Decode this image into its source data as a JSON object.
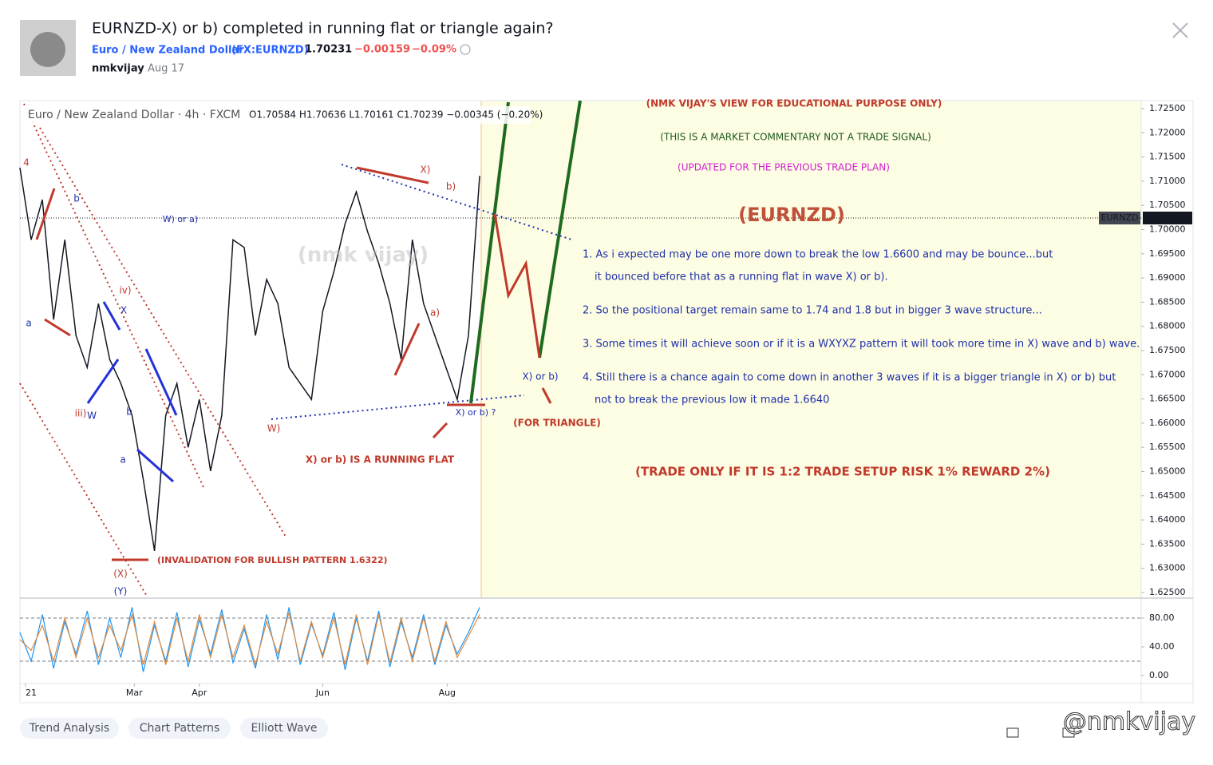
{
  "header": {
    "title": "EURNZD-X) or b) completed in running flat or triangle again?",
    "symbol_name": "Euro / New Zealand Dollar",
    "symbol_code": "(FX:EURNZD)",
    "price": "1.70231",
    "change": "−0.00159",
    "change_pct": "−0.09%",
    "author": "nmkvijay",
    "date": "Aug 17"
  },
  "chart_data": [
    {
      "type": "line",
      "title": "Euro / New Zealand Dollar · 4h · FXCM",
      "ohlc": "O1.70584 H1.70636 L1.70161 C1.70239 −0.00345 (−0.20%)",
      "series": [
        {
          "color": "#131722",
          "values": [
            1.7128,
            1.6979,
            1.7062,
            1.6814,
            1.6979,
            1.6781,
            1.6715,
            1.6847,
            1.6732,
            1.6682,
            1.6616,
            1.6484,
            1.6336,
            1.6616,
            1.6682,
            1.655,
            1.6649,
            1.6501,
            1.6616,
            1.6979,
            1.6963,
            1.6781,
            1.6897,
            1.6847,
            1.6715,
            1.6682,
            1.6649,
            1.6831,
            1.6913,
            1.7012,
            1.7078,
            1.6996,
            1.693,
            1.6847,
            1.6732,
            1.6979,
            1.6847,
            1.6781,
            1.6715,
            1.6649,
            1.6781,
            1.7111
          ]
        }
      ],
      "xlim": [
        0,
        100
      ],
      "ylim": [
        1.62401,
        1.72665
      ],
      "yticks": [
        {
          "value": 1.625,
          "label": "1.62500"
        },
        {
          "value": 1.63,
          "label": "1.63000"
        },
        {
          "value": 1.635,
          "label": "1.63500"
        },
        {
          "value": 1.64,
          "label": "1.64000"
        },
        {
          "value": 1.645,
          "label": "1.64500"
        },
        {
          "value": 1.65,
          "label": "1.65000"
        },
        {
          "value": 1.655,
          "label": "1.65500"
        },
        {
          "value": 1.66,
          "label": "1.66000"
        },
        {
          "value": 1.665,
          "label": "1.66500"
        },
        {
          "value": 1.67,
          "label": "1.67000"
        },
        {
          "value": 1.675,
          "label": "1.67500"
        },
        {
          "value": 1.68,
          "label": "1.68000"
        },
        {
          "value": 1.685,
          "label": "1.68500"
        },
        {
          "value": 1.69,
          "label": "1.69000"
        },
        {
          "value": 1.695,
          "label": "1.69500"
        },
        {
          "value": 1.7,
          "label": "1.70000"
        },
        {
          "value": 1.705,
          "label": "1.70500"
        },
        {
          "value": 1.71,
          "label": "1.71000"
        },
        {
          "value": 1.715,
          "label": "1.71500"
        },
        {
          "value": 1.72,
          "label": "1.72000"
        },
        {
          "value": 1.725,
          "label": "1.72500"
        }
      ],
      "last_price_symbol": "EURNZD",
      "last_price": 1.70239,
      "annotations": [
        "(NMK VIJAY'S VIEW FOR EDUCATIONAL PURPOSE ONLY)",
        "(THIS IS A MARKET COMMENTARY NOT A TRADE SIGNAL)",
        "(UPDATED FOR THE PREVIOUS TRADE PLAN)",
        "(EURNZD)",
        "1. As i expected may be one more down to break the low 1.6600 and may be bounce...but",
        "it bounced before that as a running flat in wave X) or b).",
        "2. So the positional target remain same to 1.74 and 1.8 but in bigger 3 wave structure...",
        "3. Some times it will achieve soon or if it is a WXYXZ pattern it will took more time in X) wave and b) wave.",
        "4. Still there is a chance again to come down in another 3 waves if it is a bigger triangle in X) or b) but",
        "not to break the previous low it made 1.6640",
        "(TRADE ONLY IF IT IS 1:2 TRADE SETUP RISK 1% REWARD 2%)",
        "(FOR TRIANGLE)",
        "X) or b) IS A RUNNING FLAT",
        "(INVALIDATION FOR BULLISH PATTERN 1.6322)",
        "X) or b)",
        "X) or b) ?",
        "W) or a)",
        "X)",
        "b)",
        "a)",
        "W)",
        "(X)",
        "(Y)",
        "iv)",
        "X",
        "iii)",
        "W",
        "b",
        "a",
        "a",
        "b",
        "4",
        "(nmk vijay)"
      ]
    },
    {
      "type": "line",
      "series": [
        {
          "color": "#2196f3",
          "values": [
            60,
            20,
            85,
            10,
            75,
            30,
            90,
            15,
            80,
            25,
            95,
            5,
            70,
            20,
            88,
            12,
            78,
            30,
            92,
            18,
            65,
            10,
            85,
            22,
            95,
            15,
            72,
            28,
            88,
            8,
            80,
            20,
            90,
            12,
            75,
            25,
            85,
            15,
            70,
            30,
            60,
            95
          ]
        },
        {
          "color": "#e08a3c",
          "values": [
            50,
            35,
            70,
            20,
            80,
            25,
            80,
            25,
            70,
            35,
            85,
            15,
            75,
            15,
            80,
            20,
            85,
            25,
            85,
            25,
            70,
            15,
            75,
            30,
            88,
            20,
            75,
            25,
            80,
            15,
            85,
            15,
            85,
            18,
            80,
            20,
            80,
            20,
            75,
            25,
            55,
            85
          ]
        }
      ],
      "xlim": [
        0,
        100
      ],
      "ylim": [
        -6.7,
        106.7
      ],
      "yticks": [
        {
          "value": 0,
          "label": "0.00"
        },
        {
          "value": 40,
          "label": "40.00"
        },
        {
          "value": 80,
          "label": "80.00"
        }
      ],
      "levels": [
        80,
        20
      ],
      "xticks": [
        {
          "value": 0.5,
          "label": "21"
        },
        {
          "value": 10.2,
          "label": "Mar"
        },
        {
          "value": 16,
          "label": "Apr"
        },
        {
          "value": 27,
          "label": "Jun"
        },
        {
          "value": 38.1,
          "label": "Aug"
        }
      ]
    }
  ],
  "tags": [
    "Trend Analysis",
    "Chart Patterns",
    "Elliott Wave"
  ],
  "footer": {
    "watermark": "@nmkvijay"
  }
}
